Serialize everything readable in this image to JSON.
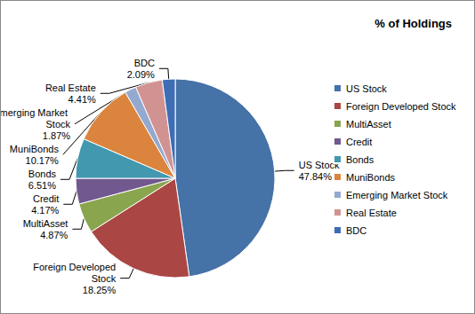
{
  "chart_data": {
    "type": "pie",
    "title": "% of Holdings",
    "categories": [
      "US Stock",
      "Foreign Developed Stock",
      "MultiAsset",
      "Credit",
      "Bonds",
      "MuniBonds",
      "Emerging Market Stock",
      "Real Estate",
      "BDC"
    ],
    "values": [
      47.84,
      18.25,
      4.87,
      4.17,
      6.51,
      10.17,
      1.87,
      4.41,
      2.09
    ],
    "value_labels": [
      "47.84%",
      "18.25%",
      "4.87%",
      "4.17%",
      "6.51%",
      "10.17%",
      "1.87%",
      "4.41%",
      "2.09%"
    ],
    "colors": [
      "#4572A7",
      "#AA4643",
      "#89A54E",
      "#71588F",
      "#4198AF",
      "#DB843D",
      "#93A9CF",
      "#D19392",
      "#3D6DB5"
    ],
    "legend": "right",
    "data_labels": true
  }
}
